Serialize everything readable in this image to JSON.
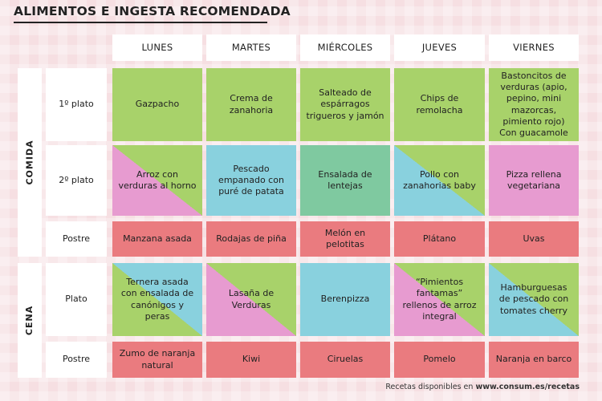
{
  "title": "ALIMENTOS E INGESTA RECOMENDADA",
  "days": [
    "LUNES",
    "MARTES",
    "MIÉRCOLES",
    "JUEVES",
    "VIERNES"
  ],
  "sections": {
    "comida": "COMIDA",
    "cena": "CENA"
  },
  "rows": {
    "comida_plato1": "1º plato",
    "comida_plato2": "2º plato",
    "comida_postre": "Postre",
    "cena_plato": "Plato",
    "cena_postre": "Postre"
  },
  "menu": {
    "comida_plato1": [
      "Gazpacho",
      "Crema de zanahoria",
      "Salteado de espárragos trigueros y jamón",
      "Chips de remolacha",
      "Bastoncitos de verduras (apio, pepino, mini mazorcas, pimiento rojo)\nCon guacamole"
    ],
    "comida_plato2": [
      "Arroz con verduras al horno",
      "Pescado empanado con puré de patata",
      "Ensalada de lentejas",
      "Pollo con zanahorias baby",
      "Pizza rellena vegetariana"
    ],
    "comida_postre": [
      "Manzana asada",
      "Rodajas de piña",
      "Melón en pelotitas",
      "Plátano",
      "Uvas"
    ],
    "cena_plato": [
      "Ternera asada con ensalada de canónigos y peras",
      "Lasaña de Verduras",
      "Berenpizza",
      "“Pimientos fantamas” rellenos de arroz integral",
      "Hamburguesas de pescado con tomates cherry"
    ],
    "cena_postre": [
      "Zumo de naranja natural",
      "Kiwi",
      "Ciruelas",
      "Pomelo",
      "Naranja en barco"
    ]
  },
  "footer": {
    "text": "Recetas disponibles en ",
    "link": "www.consum.es/recetas"
  },
  "colors": {
    "green": "#a8d26a",
    "teal_green": "#7fc9a0",
    "blue": "#89d1de",
    "pink": "#e79bd0",
    "salmon": "#ea7b7f",
    "background": "#f6dfe2"
  }
}
